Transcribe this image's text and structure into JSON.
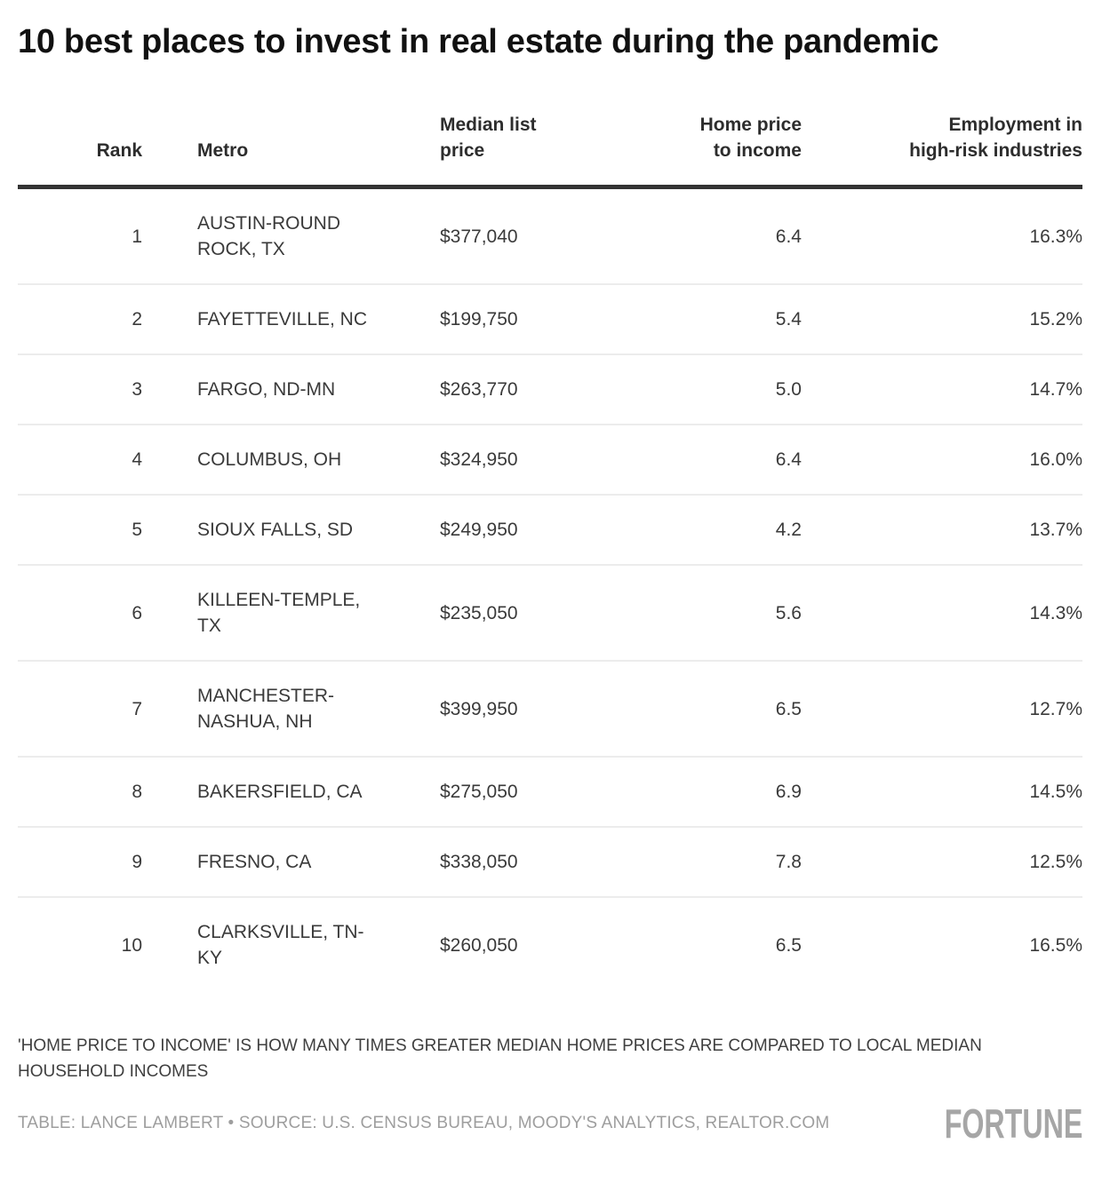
{
  "title": "10 best places to invest in real estate during the pandemic",
  "chart_data": {
    "type": "table",
    "title": "10 best places to invest in real estate during the pandemic",
    "columns": [
      "Rank",
      "Metro",
      "Median list price",
      "Home price to income",
      "Employment in high-risk industries"
    ],
    "rows": [
      [
        "1",
        "AUSTIN-ROUND ROCK, TX",
        "$377,040",
        "6.4",
        "16.3%"
      ],
      [
        "2",
        "FAYETTEVILLE, NC",
        "$199,750",
        "5.4",
        "15.2%"
      ],
      [
        "3",
        "FARGO, ND-MN",
        "$263,770",
        "5.0",
        "14.7%"
      ],
      [
        "4",
        "COLUMBUS, OH",
        "$324,950",
        "6.4",
        "16.0%"
      ],
      [
        "5",
        "SIOUX FALLS, SD",
        "$249,950",
        "4.2",
        "13.7%"
      ],
      [
        "6",
        "KILLEEN-TEMPLE, TX",
        "$235,050",
        "5.6",
        "14.3%"
      ],
      [
        "7",
        "MANCHESTER-NASHUA, NH",
        "$399,950",
        "6.5",
        "12.7%"
      ],
      [
        "8",
        "BAKERSFIELD, CA",
        "$275,050",
        "6.9",
        "14.5%"
      ],
      [
        "9",
        "FRESNO, CA",
        "$338,050",
        "7.8",
        "12.5%"
      ],
      [
        "10",
        "CLARKSVILLE, TN-KY",
        "$260,050",
        "6.5",
        "16.5%"
      ]
    ]
  },
  "footnote": "'HOME PRICE TO INCOME' IS HOW MANY TIMES GREATER MEDIAN HOME PRICES ARE COMPARED TO LOCAL MEDIAN HOUSEHOLD INCOMES",
  "credit": "TABLE: LANCE LAMBERT • SOURCE: U.S. CENSUS BUREAU, MOODY'S ANALYTICS, REALTOR.COM",
  "logo": "FORTUNE",
  "colors": {
    "title_text": "#111111",
    "body_text": "#3a3a3a",
    "header_rule": "#333333",
    "row_separator": "#ececec",
    "muted_text": "#9e9e9e",
    "logo_gray": "#a6a6a6",
    "background": "#ffffff"
  }
}
